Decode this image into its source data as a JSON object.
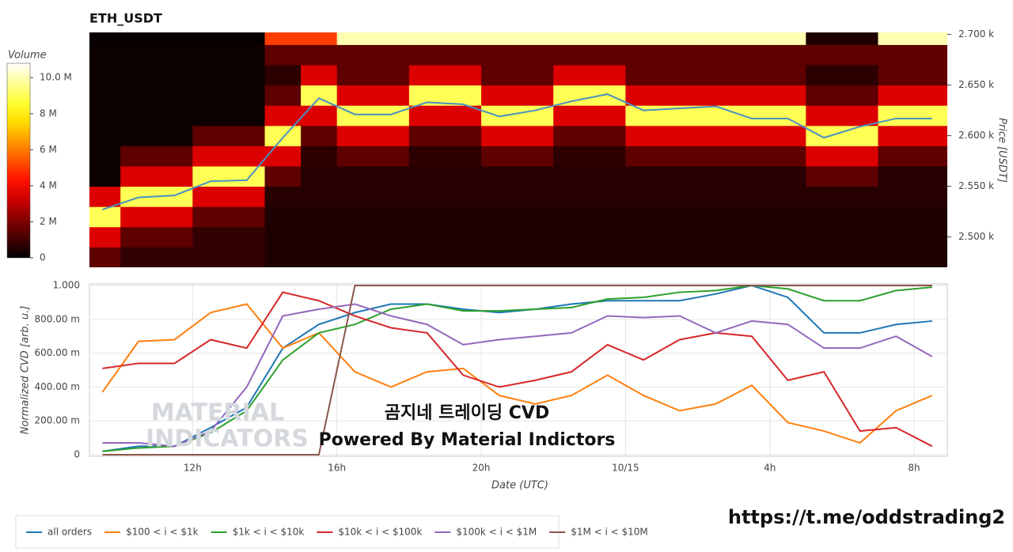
{
  "chart_data": [
    {
      "type": "heatmap",
      "title": "ETH_USDT",
      "ylabel": "Price [USDT]",
      "x": [
        9.5,
        10.5,
        11.5,
        12.5,
        13.5,
        14.5,
        15.5,
        16.5,
        17.5,
        18.5,
        19.5,
        20.5,
        21.5,
        22.5,
        23.5,
        24.5,
        25.5,
        26.5,
        27.5,
        28.5,
        29.5,
        30.5,
        31.5,
        32.5
      ],
      "xlim": [
        9.14,
        32.92
      ],
      "y": [
        2480,
        2500,
        2520,
        2540,
        2560,
        2580,
        2600,
        2620,
        2640,
        2660,
        2680,
        2700
      ],
      "ylim": [
        2470,
        2702
      ],
      "yticks": [
        {
          "value": 2500,
          "label": "2.500 k"
        },
        {
          "value": 2550,
          "label": "2.550 k"
        },
        {
          "value": 2600,
          "label": "2.600 k"
        },
        {
          "value": 2650,
          "label": "2.650 k"
        },
        {
          "value": 2700,
          "label": "2.700 k"
        }
      ],
      "z": [
        [
          1.5,
          0.8,
          0.8,
          0.8,
          0.8,
          0.5,
          0.5,
          0.5,
          0.5,
          0.5,
          0.5,
          0.5,
          0.5,
          0.5,
          0.5,
          0.5,
          0.5,
          0.5,
          0.5,
          0.5,
          0.5,
          0.5,
          0.5,
          0.5
        ],
        [
          3.5,
          1.5,
          1.5,
          0.8,
          0.8,
          0.5,
          0.5,
          0.5,
          0.5,
          0.5,
          0.5,
          0.5,
          0.5,
          0.5,
          0.5,
          0.5,
          0.5,
          0.5,
          0.5,
          0.5,
          0.5,
          0.5,
          0.5,
          0.5
        ],
        [
          9,
          3.5,
          3.5,
          1.5,
          1.5,
          0.5,
          0.5,
          0.5,
          0.5,
          0.5,
          0.5,
          0.5,
          0.5,
          0.5,
          0.5,
          0.5,
          0.5,
          0.5,
          0.5,
          0.5,
          0.5,
          0.5,
          0.5,
          0.5
        ],
        [
          3.5,
          9,
          9,
          3.5,
          3.5,
          0.6,
          0.6,
          0.6,
          0.6,
          0.6,
          0.6,
          0.6,
          0.6,
          0.6,
          0.6,
          0.6,
          0.6,
          0.6,
          0.6,
          0.6,
          0.6,
          0.6,
          0.6,
          0.6
        ],
        [
          0.2,
          3.5,
          3.5,
          9,
          9,
          1.5,
          0.6,
          0.6,
          0.6,
          0.6,
          0.6,
          0.6,
          0.6,
          0.6,
          0.6,
          0.6,
          0.6,
          0.6,
          0.6,
          0.6,
          1.5,
          1.5,
          0.6,
          0.6
        ],
        [
          0.2,
          1.5,
          1.5,
          3.5,
          3.5,
          3.5,
          0.7,
          1.5,
          1.5,
          0.7,
          0.7,
          1.5,
          1.5,
          0.7,
          0.7,
          1.5,
          1.5,
          1.5,
          1.5,
          1.5,
          3.5,
          3.5,
          1.5,
          1.5
        ],
        [
          0.2,
          0.2,
          0.2,
          1.5,
          1.5,
          9,
          1.5,
          3.5,
          3.5,
          1.5,
          1.5,
          3.5,
          3.5,
          1.5,
          1.5,
          3.5,
          3.5,
          3.5,
          3.5,
          3.5,
          9,
          9,
          3.5,
          3.5
        ],
        [
          0.2,
          0.2,
          0.2,
          0.2,
          0.2,
          3.5,
          3.5,
          9,
          9,
          3.5,
          3.5,
          9,
          9,
          3.5,
          3.5,
          9,
          9,
          9,
          9,
          9,
          3.5,
          3.5,
          9,
          9
        ],
        [
          0.2,
          0.2,
          0.2,
          0.2,
          0.2,
          1.5,
          9,
          3.5,
          3.5,
          9,
          9,
          3.5,
          3.5,
          9,
          9,
          3.5,
          3.5,
          3.5,
          3.5,
          3.5,
          1.5,
          1.5,
          3.5,
          3.5
        ],
        [
          0.2,
          0.2,
          0.2,
          0.2,
          0.2,
          0.7,
          3.5,
          1.5,
          1.5,
          3.5,
          3.5,
          1.5,
          1.5,
          3.5,
          3.5,
          1.5,
          1.5,
          1.5,
          1.5,
          1.5,
          0.7,
          0.7,
          1.5,
          1.5
        ],
        [
          0.2,
          0.2,
          0.2,
          0.2,
          0.2,
          1.5,
          1.5,
          1.5,
          1.5,
          1.5,
          1.5,
          1.5,
          1.5,
          1.5,
          1.5,
          1.5,
          1.5,
          1.5,
          1.5,
          1.5,
          1.5,
          1.5,
          1.5,
          1.5
        ],
        [
          0.1,
          0.1,
          0.1,
          0.1,
          0.1,
          5,
          5,
          10,
          10,
          10,
          10,
          10,
          10,
          10,
          10,
          10,
          10,
          10,
          10,
          10,
          0.5,
          0.5,
          10,
          10
        ]
      ],
      "colorbar": {
        "title": "Volume",
        "lim": [
          0,
          10.8
        ],
        "ticks": [
          0,
          {
            "value": 2,
            "label": "2 M"
          },
          {
            "value": 4,
            "label": "4 M"
          },
          {
            "value": 6,
            "label": "6 M"
          },
          {
            "value": 8,
            "label": "8 M"
          },
          {
            "value": 10,
            "label": "10.0 M"
          }
        ]
      },
      "price_line": {
        "color": "#4a90c2",
        "values": [
          2527,
          2539,
          2541,
          2555,
          2556,
          2598,
          2637,
          2621,
          2621,
          2633,
          2631,
          2619,
          2625,
          2634,
          2641,
          2625,
          2627,
          2629,
          2617,
          2617,
          2598,
          2609,
          2617,
          2617
        ]
      }
    },
    {
      "type": "line",
      "xlabel": "Date (UTC)",
      "ylabel": "Normalized CVD [arb. u.]",
      "x": [
        9.5,
        10.5,
        11.5,
        12.5,
        13.5,
        14.5,
        15.5,
        16.5,
        17.5,
        18.5,
        19.5,
        20.5,
        21.5,
        22.5,
        23.5,
        24.5,
        25.5,
        26.5,
        27.5,
        28.5,
        29.5,
        30.5,
        31.5,
        32.5
      ],
      "xlim": [
        9.14,
        32.92
      ],
      "xticks": [
        {
          "value": 12,
          "label": "12h"
        },
        {
          "value": 16,
          "label": "16h"
        },
        {
          "value": 20,
          "label": "20h"
        },
        {
          "value": 24,
          "label": "10/15"
        },
        {
          "value": 28,
          "label": "4h"
        },
        {
          "value": 32,
          "label": "8h"
        }
      ],
      "ylim": [
        0,
        1
      ],
      "yticks": [
        0,
        {
          "value": 0.2,
          "label": "200.00 m"
        },
        {
          "value": 0.4,
          "label": "400.00 m"
        },
        {
          "value": 0.6,
          "label": "600.00 m"
        },
        {
          "value": 0.8,
          "label": "800.00 m"
        },
        {
          "value": 1,
          "label": "1.000"
        }
      ],
      "grid": true,
      "legend": "bottom",
      "series": [
        {
          "name": "all orders",
          "color": "#1f77b4",
          "values": [
            0.02,
            0.05,
            0.05,
            0.16,
            0.28,
            0.63,
            0.77,
            0.84,
            0.89,
            0.89,
            0.86,
            0.84,
            0.86,
            0.89,
            0.91,
            0.91,
            0.91,
            0.95,
            1.0,
            0.93,
            0.72,
            0.72,
            0.77,
            0.79
          ]
        },
        {
          "name": "$100 < i < $1k",
          "color": "#ff7f0e",
          "values": [
            0.37,
            0.67,
            0.68,
            0.84,
            0.89,
            0.63,
            0.72,
            0.49,
            0.4,
            0.49,
            0.51,
            0.35,
            0.3,
            0.35,
            0.47,
            0.35,
            0.26,
            0.3,
            0.41,
            0.19,
            0.14,
            0.07,
            0.26,
            0.35
          ]
        },
        {
          "name": "$1k < i < $10k",
          "color": "#2ca02c",
          "values": [
            0.02,
            0.04,
            0.05,
            0.13,
            0.26,
            0.56,
            0.72,
            0.77,
            0.86,
            0.89,
            0.85,
            0.85,
            0.86,
            0.87,
            0.92,
            0.93,
            0.96,
            0.97,
            1.0,
            0.98,
            0.91,
            0.91,
            0.97,
            0.99
          ]
        },
        {
          "name": "$10k < i < $100k",
          "color": "#d62728",
          "values": [
            0.51,
            0.54,
            0.54,
            0.68,
            0.63,
            0.96,
            0.91,
            0.82,
            0.75,
            0.72,
            0.47,
            0.4,
            0.44,
            0.49,
            0.65,
            0.56,
            0.68,
            0.72,
            0.7,
            0.44,
            0.49,
            0.14,
            0.16,
            0.05
          ]
        },
        {
          "name": "$100k < i < $1M",
          "color": "#9467bd",
          "values": [
            0.07,
            0.07,
            0.05,
            0.14,
            0.4,
            0.82,
            0.86,
            0.89,
            0.82,
            0.77,
            0.65,
            0.68,
            0.7,
            0.72,
            0.82,
            0.81,
            0.82,
            0.72,
            0.79,
            0.77,
            0.63,
            0.63,
            0.7,
            0.58
          ]
        },
        {
          "name": "$1M < i < $10M",
          "color": "#8c564b",
          "values": [
            0,
            0,
            0,
            0,
            0,
            0,
            0,
            1,
            1,
            1,
            1,
            1,
            1,
            1,
            1,
            1,
            1,
            1,
            1,
            1,
            1,
            1,
            1,
            1
          ]
        }
      ]
    }
  ],
  "watermark": [
    "MATERIAL",
    "INDICATORS"
  ],
  "overlay": [
    "곰지네 트레이딩 CVD",
    "Powered By Material Indictors"
  ],
  "link": "https://t.me/oddstrading2"
}
